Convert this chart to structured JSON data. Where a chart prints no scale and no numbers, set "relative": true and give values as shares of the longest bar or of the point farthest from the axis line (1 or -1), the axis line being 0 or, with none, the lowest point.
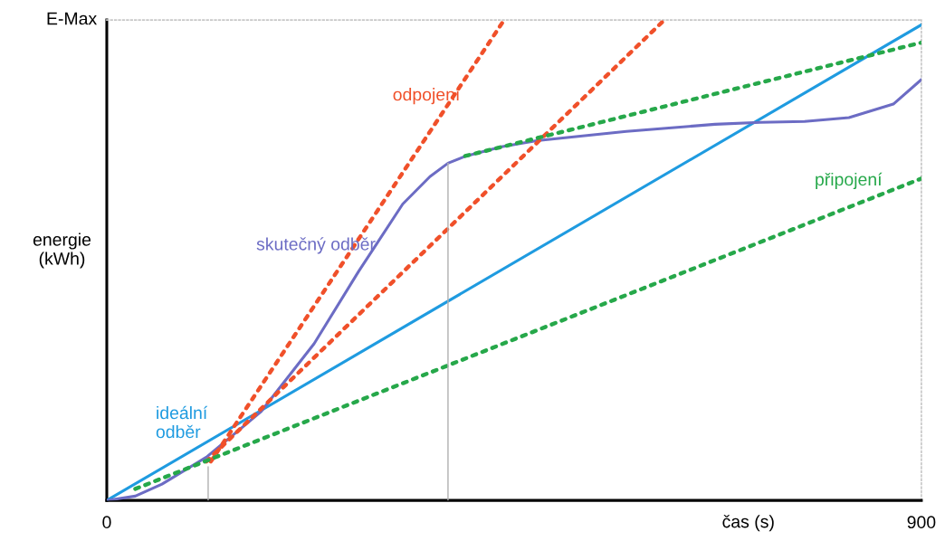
{
  "chart_data": {
    "type": "line",
    "xlabel": "čas (s)",
    "ylabel": "energie\n(kWh)",
    "relative": true,
    "xlim": [
      0,
      900
    ],
    "xticks": [
      0,
      900
    ],
    "annotations": [
      "E-Max"
    ],
    "legend": false,
    "marker": "none",
    "series": [
      {
        "name": "ideální odběr",
        "color": "#1f9be0",
        "x": [
          0,
          900
        ],
        "values": [
          0,
          0.99
        ],
        "line_style": "solid"
      },
      {
        "name": "skutečný odběr",
        "color": "#6c6cc4",
        "x": [
          0,
          31.5,
          61,
          110,
          170,
          229,
          278,
          327,
          357,
          377,
          397,
          436,
          475,
          574,
          672,
          722,
          771,
          820,
          869,
          900
        ],
        "values": [
          0,
          0.009,
          0.034,
          0.09,
          0.184,
          0.326,
          0.476,
          0.617,
          0.674,
          0.702,
          0.717,
          0.736,
          0.749,
          0.768,
          0.783,
          0.787,
          0.789,
          0.797,
          0.825,
          0.876
        ],
        "line_style": "solid"
      },
      {
        "name": "odpojení",
        "color": "#f0502a",
        "x": [
          115,
          439
        ],
        "values": [
          0.081,
          1.0
        ],
        "line_style": "dotted"
      },
      {
        "color": "#f0502a",
        "x": [
          110,
          616
        ],
        "values": [
          0.081,
          1.0
        ],
        "line_style": "dotted"
      },
      {
        "name": "připojení",
        "color": "#26a84a",
        "x": [
          396,
          900
        ],
        "values": [
          0.717,
          0.953
        ],
        "line_style": "dotted"
      },
      {
        "color": "#26a84a",
        "x": [
          31.5,
          900
        ],
        "values": [
          0.024,
          0.67
        ],
        "line_style": "dotted"
      },
      {
        "color": "#b0b0b0",
        "x": [
          112,
          112
        ],
        "values": [
          0,
          0.07
        ],
        "line_style": "solid"
      },
      {
        "color": "#b0b0b0",
        "x": [
          377,
          377
        ],
        "values": [
          0,
          0.702
        ],
        "line_style": "solid"
      }
    ]
  }
}
